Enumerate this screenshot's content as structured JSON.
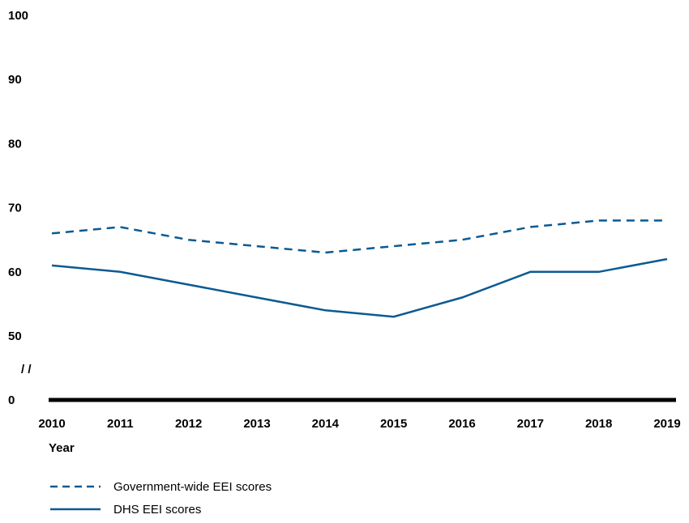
{
  "chart_data": {
    "type": "line",
    "x": [
      "2010",
      "2011",
      "2012",
      "2013",
      "2014",
      "2015",
      "2016",
      "2017",
      "2018",
      "2019"
    ],
    "xlabel": "Year",
    "ylabel": "",
    "ylim": [
      0,
      100
    ],
    "y_ticks": [
      "100",
      "90",
      "80",
      "70",
      "60",
      "50",
      "0"
    ],
    "axis_break_mark": "/ /",
    "series": [
      {
        "name": "Government-wide EEI scores",
        "style": "dashed",
        "color": "#0b5a91",
        "values": [
          66,
          67,
          65,
          64,
          63,
          64,
          65,
          67,
          68,
          68
        ]
      },
      {
        "name": "DHS EEI scores",
        "style": "solid",
        "color": "#0b5a91",
        "values": [
          61,
          60,
          58,
          56,
          54,
          53,
          56,
          60,
          60,
          62
        ]
      }
    ],
    "grid": false,
    "legend_position": "bottom-left"
  }
}
